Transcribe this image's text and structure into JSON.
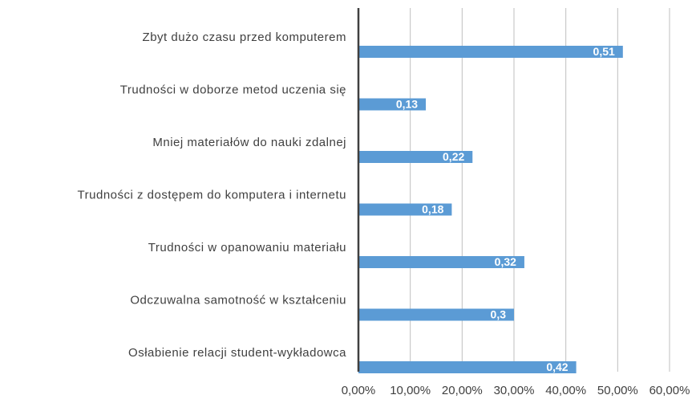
{
  "chart_data": {
    "type": "barh",
    "categories": [
      "Zbyt dużo czasu przed komputerem",
      "Trudności w doborze metod uczenia się",
      "Mniej materiałów do nauki zdalnej",
      "Trudności z dostępem do komputera i internetu",
      "Trudności w opanowaniu materiału",
      "Odczuwalna samotność w kształceniu",
      "Osłabienie relacji student-wykładowca"
    ],
    "values": [
      0.51,
      0.13,
      0.22,
      0.18,
      0.32,
      0.3,
      0.42
    ],
    "value_labels": [
      "0,51",
      "0,13",
      "0,22",
      "0,18",
      "0,32",
      "0,3",
      "0,42"
    ],
    "color": "#5b9bd5",
    "xlim": [
      0,
      0.6
    ],
    "xticks": [
      {
        "value": 0,
        "label": "0,00%"
      },
      {
        "value": 0.1,
        "label": "10,00%"
      },
      {
        "value": 0.2,
        "label": "20,00%"
      },
      {
        "value": 0.3,
        "label": "30,00%"
      },
      {
        "value": 0.4,
        "label": "40,00%"
      },
      {
        "value": 0.5,
        "label": "50,00%"
      },
      {
        "value": 0.6,
        "label": "60,00%"
      }
    ],
    "grid": true
  }
}
